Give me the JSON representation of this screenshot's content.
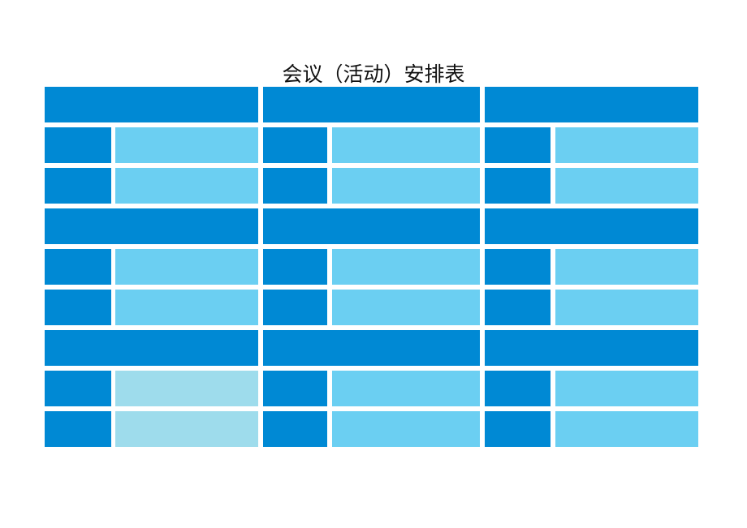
{
  "title": "会议（活动）安排表",
  "colors": {
    "header": "#0089D4",
    "label": "#0089D4",
    "value": "#6BCFF2",
    "value_pale": "#9EDCEC",
    "background": "#FFFFFF"
  },
  "sections": [
    {
      "rows": [
        [
          "value",
          "value",
          "value"
        ],
        [
          "value",
          "value",
          "value"
        ]
      ]
    },
    {
      "rows": [
        [
          "value",
          "value",
          "value"
        ],
        [
          "value",
          "value",
          "value"
        ]
      ]
    },
    {
      "rows": [
        [
          "value_pale",
          "value",
          "value"
        ],
        [
          "value_pale",
          "value",
          "value"
        ]
      ]
    }
  ]
}
